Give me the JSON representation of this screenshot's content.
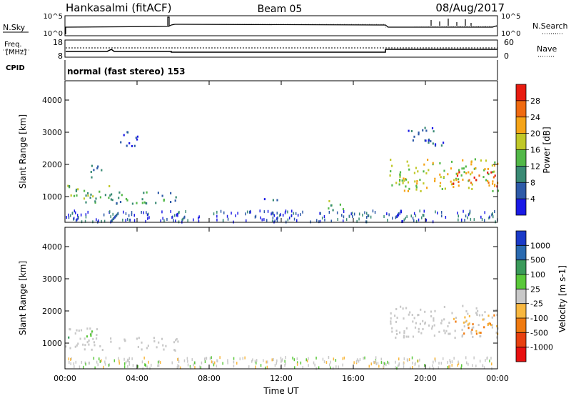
{
  "header": {
    "station": "Hankasalmi (fitACF)",
    "beam": "Beam 05",
    "date": "08/Aug/2017"
  },
  "status_panels": {
    "nsky_label": "N.Sky",
    "nsky_ticks": [
      "10^5",
      "10^0"
    ],
    "nsearch_label": "N.Search",
    "nsearch_ticks": [
      "10^5",
      "10^0"
    ],
    "freq_label_1": "Freq.",
    "freq_label_2": "[MHz]",
    "freq_ticks": [
      "18",
      "8"
    ],
    "nave_label": "Nave",
    "nave_ticks": [
      "60",
      "0"
    ],
    "cpid_label": "CPID",
    "cpid_text": "normal (fast stereo) 153"
  },
  "chart_data": [
    {
      "type": "heatmap",
      "name": "power",
      "ylabel": "Slant Range [km]",
      "yticks": [
        1000,
        2000,
        3000,
        4000
      ],
      "ylim": [
        200,
        4600
      ],
      "xlim_hours": [
        0,
        24
      ],
      "colorbar_label": "Power [dB]",
      "colorbar_ticks": [
        "4",
        "8",
        "12",
        "16",
        "20",
        "24",
        "28"
      ],
      "colorbar_colors": [
        "#1a1ae6",
        "#2d5aa8",
        "#3a8a74",
        "#52b848",
        "#c0c828",
        "#f5a418",
        "#f06a10",
        "#e81c10"
      ],
      "scatter_regions": [
        {
          "t": [
            0.0,
            2.5
          ],
          "r": [
            800,
            1400
          ],
          "level": 3
        },
        {
          "t": [
            2.5,
            6.5
          ],
          "r": [
            800,
            1200
          ],
          "level": 2
        },
        {
          "t": [
            1.0,
            2.0
          ],
          "r": [
            1600,
            2000
          ],
          "level": 1
        },
        {
          "t": [
            3.0,
            4.0
          ],
          "r": [
            2500,
            3100
          ],
          "level": 1
        },
        {
          "t": [
            14.5,
            15.5
          ],
          "r": [
            600,
            1000
          ],
          "level": 3
        },
        {
          "t": [
            11.0,
            12.5
          ],
          "r": [
            900,
            1000
          ],
          "level": 1
        },
        {
          "t": [
            18.0,
            24.0
          ],
          "r": [
            1200,
            2200
          ],
          "level": 4
        },
        {
          "t": [
            21.5,
            24.0
          ],
          "r": [
            1300,
            1900
          ],
          "level": 6
        },
        {
          "t": [
            19.0,
            21.0
          ],
          "r": [
            2600,
            3200
          ],
          "level": 1
        }
      ]
    },
    {
      "type": "heatmap",
      "name": "velocity",
      "ylabel": "Slant Range [km]",
      "yticks": [
        1000,
        2000,
        3000,
        4000
      ],
      "ylim": [
        200,
        4600
      ],
      "xlim_hours": [
        0,
        24
      ],
      "xlabel": "Time UT",
      "xticks": [
        "00:00",
        "04:00",
        "08:00",
        "12:00",
        "16:00",
        "20:00",
        "00:00"
      ],
      "colorbar_label": "Velocity [m s-1]",
      "colorbar_ticks": [
        "1000",
        "500",
        "100",
        "25",
        "-25",
        "-100",
        "-500",
        "-1000"
      ],
      "colorbar_colors": [
        "#1a3ac8",
        "#2a6ab0",
        "#3a9a5a",
        "#5ac83a",
        "#c8c8c8",
        "#f8b840",
        "#f07a10",
        "#e84010",
        "#e81010"
      ],
      "scatter_regions": [
        {
          "t": [
            0.0,
            2.0
          ],
          "r": [
            1200,
            1500
          ],
          "level": "ground"
        },
        {
          "t": [
            0.0,
            6.5
          ],
          "r": [
            800,
            1200
          ],
          "level": "ground"
        },
        {
          "t": [
            18.0,
            24.0
          ],
          "r": [
            1200,
            2200
          ],
          "level": "ground"
        },
        {
          "t": [
            21.5,
            24.0
          ],
          "r": [
            1300,
            1900
          ],
          "level": "negative"
        },
        {
          "t": [
            0.0,
            1.5
          ],
          "r": [
            1200,
            1400
          ],
          "level": "positive"
        }
      ]
    }
  ]
}
